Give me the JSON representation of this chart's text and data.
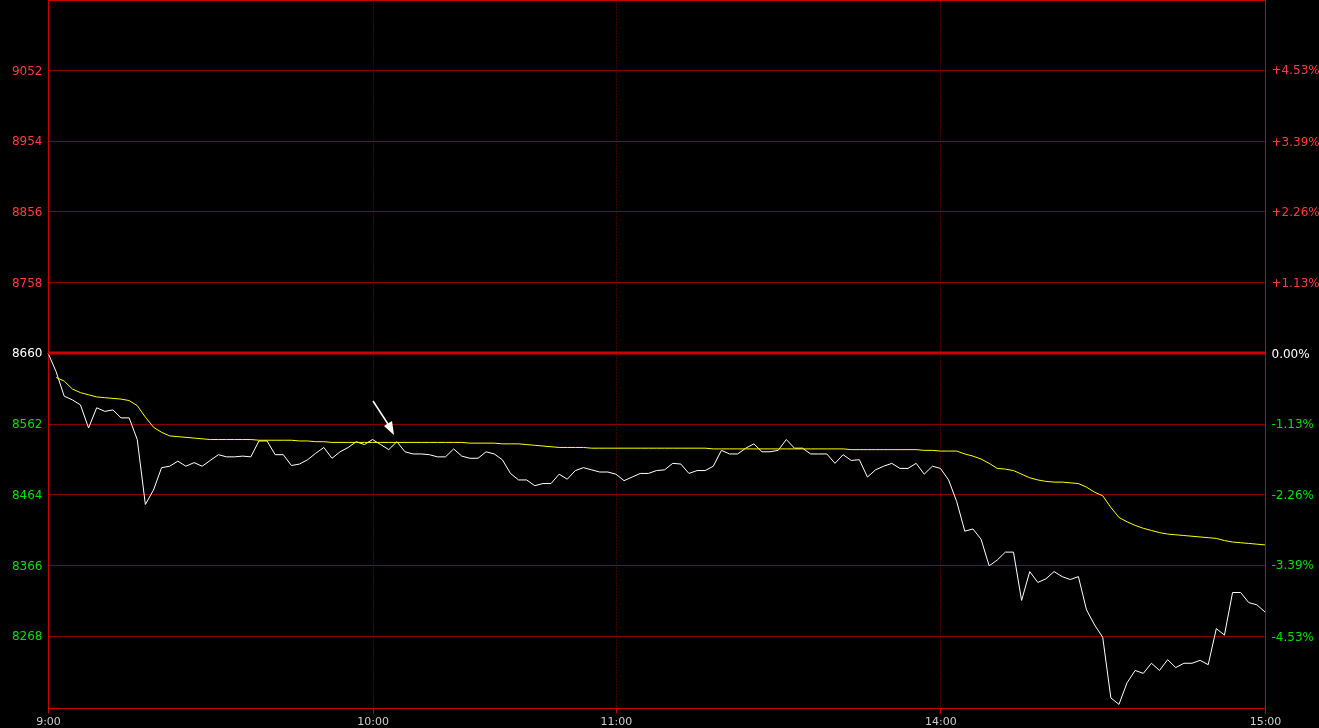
{
  "chart_data": {
    "type": "line",
    "categories": [
      "9:00",
      null,
      null,
      null,
      null,
      null,
      null,
      null,
      null,
      null,
      null,
      null,
      null,
      null,
      null,
      null,
      null,
      null,
      null,
      null,
      null,
      null,
      null,
      null,
      null,
      null,
      null,
      null,
      null,
      null,
      null,
      null,
      null,
      null,
      null,
      null,
      null,
      null,
      null,
      null,
      "10:00",
      null,
      null,
      null,
      null,
      null,
      null,
      null,
      null,
      null,
      null,
      null,
      null,
      null,
      null,
      null,
      null,
      null,
      null,
      null,
      null,
      null,
      null,
      null,
      null,
      null,
      null,
      null,
      null,
      null,
      "11:00",
      null,
      null,
      null,
      null,
      null,
      null,
      null,
      null,
      null,
      null,
      null,
      null,
      null,
      null,
      null,
      null,
      null,
      null,
      null,
      null,
      null,
      null,
      null,
      null,
      null,
      null,
      null,
      null,
      null,
      null,
      null,
      null,
      null,
      null,
      null,
      null,
      null,
      null,
      null,
      "14:00",
      null,
      null,
      null,
      null,
      null,
      null,
      null,
      null,
      null,
      null,
      null,
      null,
      null,
      null,
      null,
      null,
      null,
      null,
      null,
      null,
      null,
      null,
      null,
      null,
      null,
      null,
      null,
      null,
      null,
      null,
      null,
      null,
      null,
      null,
      null,
      null,
      null,
      null,
      null,
      "15:00"
    ],
    "ylim": [
      8168,
      9149
    ],
    "yticks": [
      8268,
      8366,
      8464,
      8562,
      8660,
      8758,
      8856,
      8954,
      9052
    ],
    "y2lim": [
      -5.68,
      5.65
    ],
    "y2ticks": [
      {
        "value": -4.53,
        "label": "-4.53%"
      },
      {
        "value": -3.39,
        "label": "-3.39%"
      },
      {
        "value": -2.26,
        "label": "-2.26%"
      },
      {
        "value": -1.13,
        "label": "-1.13%"
      },
      {
        "value": 0,
        "label": "0.00%"
      },
      {
        "value": 1.13,
        "label": "+1.13%"
      },
      {
        "value": 2.26,
        "label": "+2.26%"
      },
      {
        "value": 3.39,
        "label": "+3.39%"
      },
      {
        "value": 4.53,
        "label": "+4.53%"
      }
    ],
    "grid": true,
    "ref_lines": [
      {
        "axis": "y",
        "value": 8660,
        "color": "#cc0000"
      }
    ],
    "series": [
      {
        "color": "#ffffff",
        "values": [
          8660,
          8634,
          8600,
          8595,
          8588,
          8556,
          8584,
          8579,
          8581,
          8570,
          8570,
          8540,
          8450,
          8470,
          8501,
          8503,
          8510,
          8503,
          8508,
          8503,
          8511,
          8519,
          8516,
          8516,
          8517,
          8516,
          8538,
          8538,
          8519,
          8519,
          8504,
          8506,
          8512,
          8521,
          8529,
          8514,
          8523,
          8529,
          8537,
          8533,
          8540,
          8533,
          8526,
          8537,
          8523,
          8520,
          8520,
          8519,
          8516,
          8516,
          8527,
          8517,
          8514,
          8514,
          8523,
          8520,
          8512,
          8493,
          8484,
          8484,
          8476,
          8479,
          8479,
          8492,
          8485,
          8497,
          8501,
          8498,
          8495,
          8495,
          8492,
          8483,
          8488,
          8493,
          8493,
          8497,
          8498,
          8507,
          8506,
          8493,
          8497,
          8497,
          8503,
          8525,
          8520,
          8520,
          8528,
          8534,
          8523,
          8523,
          8525,
          8540,
          8528,
          8528,
          8520,
          8520,
          8520,
          8507,
          8519,
          8511,
          8512,
          8488,
          8498,
          8503,
          8507,
          8500,
          8500,
          8507,
          8492,
          8503,
          8500,
          8484,
          8454,
          8413,
          8416,
          8402,
          8365,
          8373,
          8384,
          8384,
          8317,
          8357,
          8342,
          8347,
          8357,
          8350,
          8346,
          8350,
          8304,
          8283,
          8266,
          8182,
          8173,
          8203,
          8220,
          8216,
          8230,
          8220,
          8235,
          8224,
          8230,
          8230,
          8234,
          8228,
          8278,
          8269,
          8328,
          8328,
          8314,
          8311,
          8301
        ]
      },
      {
        "color": "#ffff00",
        "values": [
          null,
          8626,
          8621,
          8610,
          8605,
          8602,
          8599,
          8598,
          8597,
          8596,
          8594,
          8587,
          8571,
          8557,
          8550,
          8545,
          8544,
          8543,
          8542,
          8541,
          8540,
          8540,
          8540,
          8540,
          8540,
          8540,
          8539,
          8539,
          8539,
          8539,
          8539,
          8538,
          8538,
          8537,
          8537,
          8536,
          8536,
          8536,
          8536,
          8536,
          8536,
          8536,
          8536,
          8536,
          8536,
          8536,
          8536,
          8536,
          8536,
          8536,
          8536,
          8536,
          8535,
          8535,
          8535,
          8535,
          8534,
          8534,
          8534,
          8533,
          8532,
          8531,
          8530,
          8529,
          8529,
          8529,
          8529,
          8528,
          8528,
          8528,
          8528,
          8528,
          8528,
          8528,
          8528,
          8528,
          8528,
          8528,
          8528,
          8528,
          8528,
          8528,
          8527,
          8527,
          8527,
          8527,
          8527,
          8527,
          8527,
          8527,
          8527,
          8527,
          8527,
          8527,
          8527,
          8527,
          8527,
          8527,
          8527,
          8526,
          8526,
          8526,
          8526,
          8526,
          8526,
          8526,
          8526,
          8526,
          8525,
          8525,
          8524,
          8524,
          8524,
          8520,
          8517,
          8513,
          8507,
          8500,
          8499,
          8497,
          8492,
          8487,
          8484,
          8482,
          8481,
          8481,
          8480,
          8479,
          8474,
          8467,
          8462,
          8446,
          8432,
          8426,
          8421,
          8417,
          8414,
          8411,
          8409,
          8408,
          8407,
          8406,
          8405,
          8404,
          8403,
          8400,
          8398,
          8397,
          8396,
          8395,
          8394
        ]
      }
    ]
  }
}
